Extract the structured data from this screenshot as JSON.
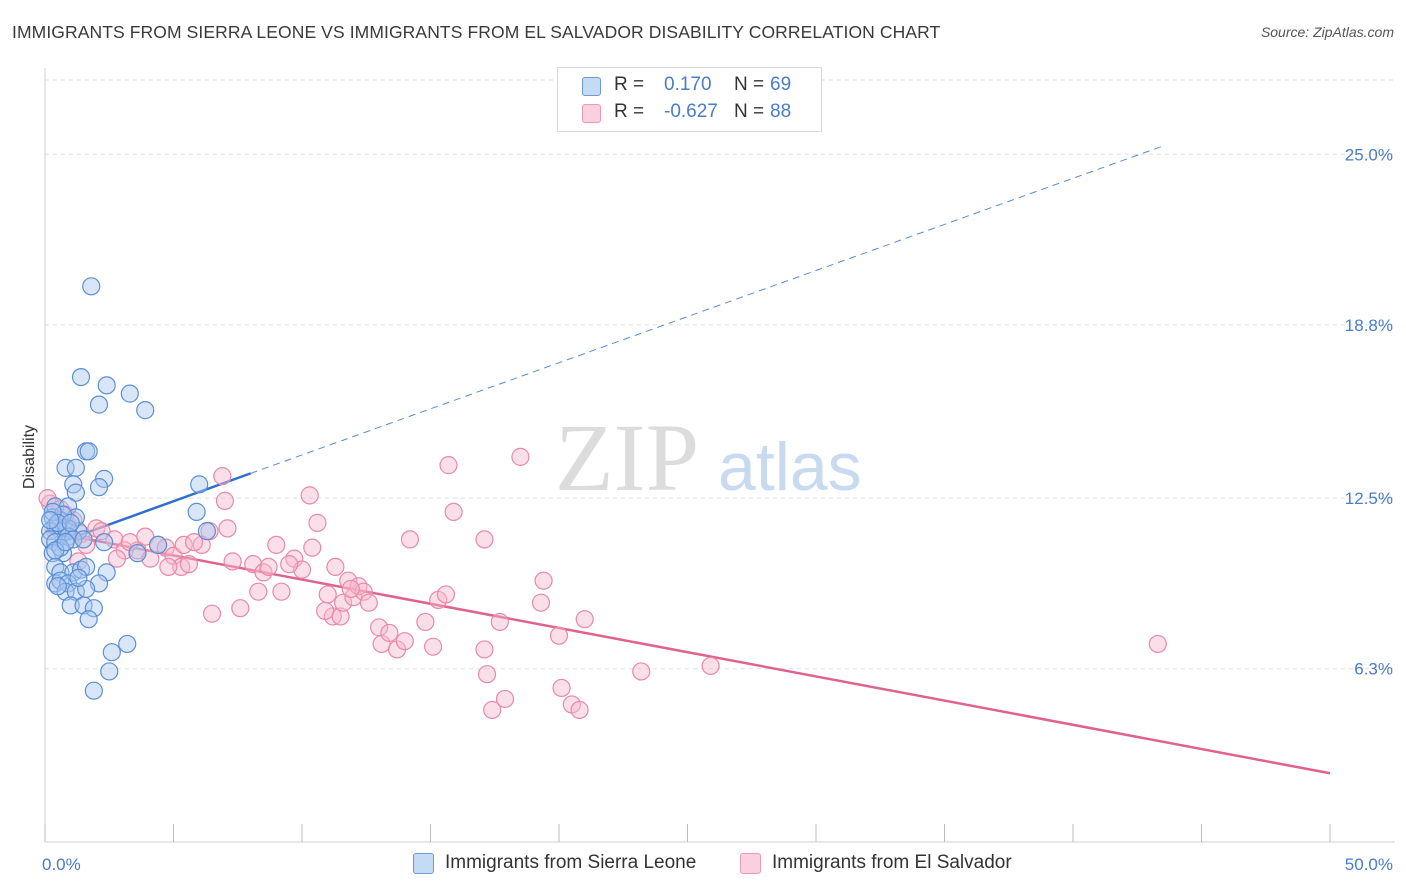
{
  "title": "IMMIGRANTS FROM SIERRA LEONE VS IMMIGRANTS FROM EL SALVADOR DISABILITY CORRELATION CHART",
  "source": "Source: ZipAtlas.com",
  "watermark": {
    "part1": "ZIP",
    "part2": "atlas"
  },
  "legend": {
    "rows": [
      {
        "r_label": "R =",
        "r_value": " 0.170",
        "n_label": "N =",
        "n_value": "69"
      },
      {
        "r_label": "R =",
        "r_value": "-0.627",
        "n_label": "N =",
        "n_value": "88"
      }
    ]
  },
  "bottom_legend": {
    "series1": "Immigrants from Sierra Leone",
    "series2": "Immigrants from El Salvador"
  },
  "colors": {
    "blue_fill": "#a8c8f0",
    "blue_stroke": "#5b8fd6",
    "blue_line": "#2f6fd0",
    "pink_fill": "#f7b8cc",
    "pink_stroke": "#e88aa8",
    "pink_line": "#e0628e",
    "accent_text": "#4a7cc9",
    "grid": "#dddddd"
  },
  "chart_data": {
    "type": "scatter",
    "title": "IMMIGRANTS FROM SIERRA LEONE VS IMMIGRANTS FROM EL SALVADOR DISABILITY CORRELATION CHART",
    "xlabel": "",
    "ylabel": "Disability",
    "xlim": [
      0,
      50
    ],
    "ylim": [
      0,
      27.7
    ],
    "x_tick_labels": [
      "0.0%",
      "50.0%"
    ],
    "y_ticks": [
      6.3,
      12.5,
      18.8,
      25.0
    ],
    "y_tick_labels": [
      "6.3%",
      "12.5%",
      "18.8%",
      "25.0%"
    ],
    "grid": true,
    "legend_position": "top-center",
    "series": [
      {
        "name": "Immigrants from Sierra Leone",
        "r": 0.17,
        "n": 69,
        "trend": {
          "x0": 0,
          "y0": 10.7,
          "x1": 8.0,
          "y1": 13.4,
          "dash_to_x": 43.5,
          "dash_to_y": 25.3
        },
        "points": [
          [
            1.8,
            20.2
          ],
          [
            1.4,
            16.9
          ],
          [
            2.4,
            16.6
          ],
          [
            2.1,
            15.9
          ],
          [
            3.3,
            16.3
          ],
          [
            3.9,
            15.7
          ],
          [
            1.6,
            14.2
          ],
          [
            1.7,
            14.2
          ],
          [
            0.8,
            13.6
          ],
          [
            1.2,
            13.6
          ],
          [
            1.1,
            13.0
          ],
          [
            2.3,
            13.2
          ],
          [
            2.1,
            12.9
          ],
          [
            1.2,
            12.7
          ],
          [
            0.4,
            12.2
          ],
          [
            0.9,
            12.2
          ],
          [
            6.0,
            13.0
          ],
          [
            5.9,
            12.0
          ],
          [
            0.3,
            11.8
          ],
          [
            0.6,
            11.7
          ],
          [
            0.4,
            11.5
          ],
          [
            0.8,
            11.4
          ],
          [
            1.3,
            11.3
          ],
          [
            1.2,
            11.8
          ],
          [
            0.9,
            11.4
          ],
          [
            0.5,
            11.4
          ],
          [
            0.2,
            11.3
          ],
          [
            0.2,
            11.0
          ],
          [
            0.4,
            10.9
          ],
          [
            0.9,
            11.1
          ],
          [
            1.1,
            11.0
          ],
          [
            0.7,
            10.5
          ],
          [
            0.3,
            10.5
          ],
          [
            0.6,
            10.7
          ],
          [
            2.3,
            10.9
          ],
          [
            3.6,
            10.5
          ],
          [
            4.4,
            10.8
          ],
          [
            6.3,
            11.3
          ],
          [
            0.4,
            10.0
          ],
          [
            0.6,
            9.8
          ],
          [
            1.1,
            9.8
          ],
          [
            1.4,
            9.9
          ],
          [
            0.4,
            9.4
          ],
          [
            0.6,
            9.5
          ],
          [
            0.9,
            9.4
          ],
          [
            1.6,
            10.0
          ],
          [
            2.4,
            9.8
          ],
          [
            0.8,
            9.1
          ],
          [
            1.2,
            9.1
          ],
          [
            1.0,
            8.6
          ],
          [
            1.5,
            8.6
          ],
          [
            1.9,
            8.5
          ],
          [
            2.1,
            9.4
          ],
          [
            1.6,
            9.2
          ],
          [
            0.5,
            9.3
          ],
          [
            1.7,
            8.1
          ],
          [
            3.2,
            7.2
          ],
          [
            2.6,
            6.9
          ],
          [
            2.5,
            6.2
          ],
          [
            1.9,
            5.5
          ],
          [
            0.7,
            11.9
          ],
          [
            0.3,
            12.0
          ],
          [
            0.5,
            11.6
          ],
          [
            1.0,
            11.6
          ],
          [
            0.4,
            10.6
          ],
          [
            1.5,
            11.0
          ],
          [
            0.8,
            10.9
          ],
          [
            0.2,
            11.7
          ],
          [
            1.3,
            9.6
          ]
        ]
      },
      {
        "name": "Immigrants from El Salvador",
        "r": -0.627,
        "n": 88,
        "trend": {
          "x0": 0,
          "y0": 11.3,
          "x1": 50,
          "y1": 2.5
        },
        "points": [
          [
            0.2,
            12.3
          ],
          [
            0.6,
            12.1
          ],
          [
            1.1,
            11.7
          ],
          [
            0.4,
            11.3
          ],
          [
            0.9,
            11.5
          ],
          [
            1.4,
            11.2
          ],
          [
            2.0,
            11.4
          ],
          [
            1.6,
            10.8
          ],
          [
            2.2,
            11.3
          ],
          [
            2.7,
            11.0
          ],
          [
            3.1,
            10.6
          ],
          [
            3.6,
            10.6
          ],
          [
            3.9,
            11.1
          ],
          [
            4.1,
            10.3
          ],
          [
            4.4,
            10.8
          ],
          [
            4.7,
            10.7
          ],
          [
            5.0,
            10.4
          ],
          [
            5.3,
            10.0
          ],
          [
            5.6,
            10.1
          ],
          [
            5.4,
            10.8
          ],
          [
            6.1,
            10.8
          ],
          [
            6.4,
            11.3
          ],
          [
            7.1,
            11.4
          ],
          [
            7.3,
            10.2
          ],
          [
            7.0,
            12.4
          ],
          [
            6.9,
            13.3
          ],
          [
            8.1,
            10.1
          ],
          [
            8.5,
            9.8
          ],
          [
            8.7,
            10.0
          ],
          [
            9.0,
            10.8
          ],
          [
            9.2,
            9.1
          ],
          [
            9.7,
            10.3
          ],
          [
            10.0,
            9.9
          ],
          [
            10.4,
            10.7
          ],
          [
            10.3,
            12.6
          ],
          [
            10.6,
            11.6
          ],
          [
            11.0,
            9.0
          ],
          [
            11.2,
            8.2
          ],
          [
            11.5,
            8.2
          ],
          [
            11.6,
            8.7
          ],
          [
            11.8,
            9.5
          ],
          [
            12.0,
            8.9
          ],
          [
            12.2,
            9.3
          ],
          [
            12.4,
            9.1
          ],
          [
            12.6,
            8.7
          ],
          [
            13.0,
            7.8
          ],
          [
            13.1,
            7.2
          ],
          [
            13.4,
            7.6
          ],
          [
            13.7,
            7.0
          ],
          [
            14.0,
            7.3
          ],
          [
            14.8,
            8.0
          ],
          [
            15.1,
            7.1
          ],
          [
            15.3,
            8.8
          ],
          [
            15.6,
            9.0
          ],
          [
            14.2,
            11.0
          ],
          [
            15.7,
            13.7
          ],
          [
            15.9,
            12.0
          ],
          [
            17.1,
            7.0
          ],
          [
            17.2,
            6.1
          ],
          [
            17.4,
            4.8
          ],
          [
            17.9,
            5.2
          ],
          [
            17.7,
            8.0
          ],
          [
            17.1,
            11.0
          ],
          [
            18.5,
            14.0
          ],
          [
            19.3,
            8.7
          ],
          [
            19.4,
            9.5
          ],
          [
            20.1,
            5.6
          ],
          [
            20.5,
            5.0
          ],
          [
            20.8,
            4.8
          ],
          [
            21.0,
            8.1
          ],
          [
            20.0,
            7.5
          ],
          [
            23.2,
            6.2
          ],
          [
            25.9,
            6.4
          ],
          [
            43.3,
            7.2
          ],
          [
            1.3,
            10.2
          ],
          [
            2.8,
            10.3
          ],
          [
            3.3,
            10.9
          ],
          [
            0.8,
            11.9
          ],
          [
            4.8,
            10.0
          ],
          [
            6.5,
            8.3
          ],
          [
            7.6,
            8.5
          ],
          [
            8.3,
            9.1
          ],
          [
            9.5,
            10.1
          ],
          [
            11.3,
            10.0
          ],
          [
            11.9,
            9.2
          ],
          [
            10.9,
            8.4
          ],
          [
            5.8,
            10.9
          ],
          [
            0.1,
            12.5
          ]
        ]
      }
    ]
  }
}
